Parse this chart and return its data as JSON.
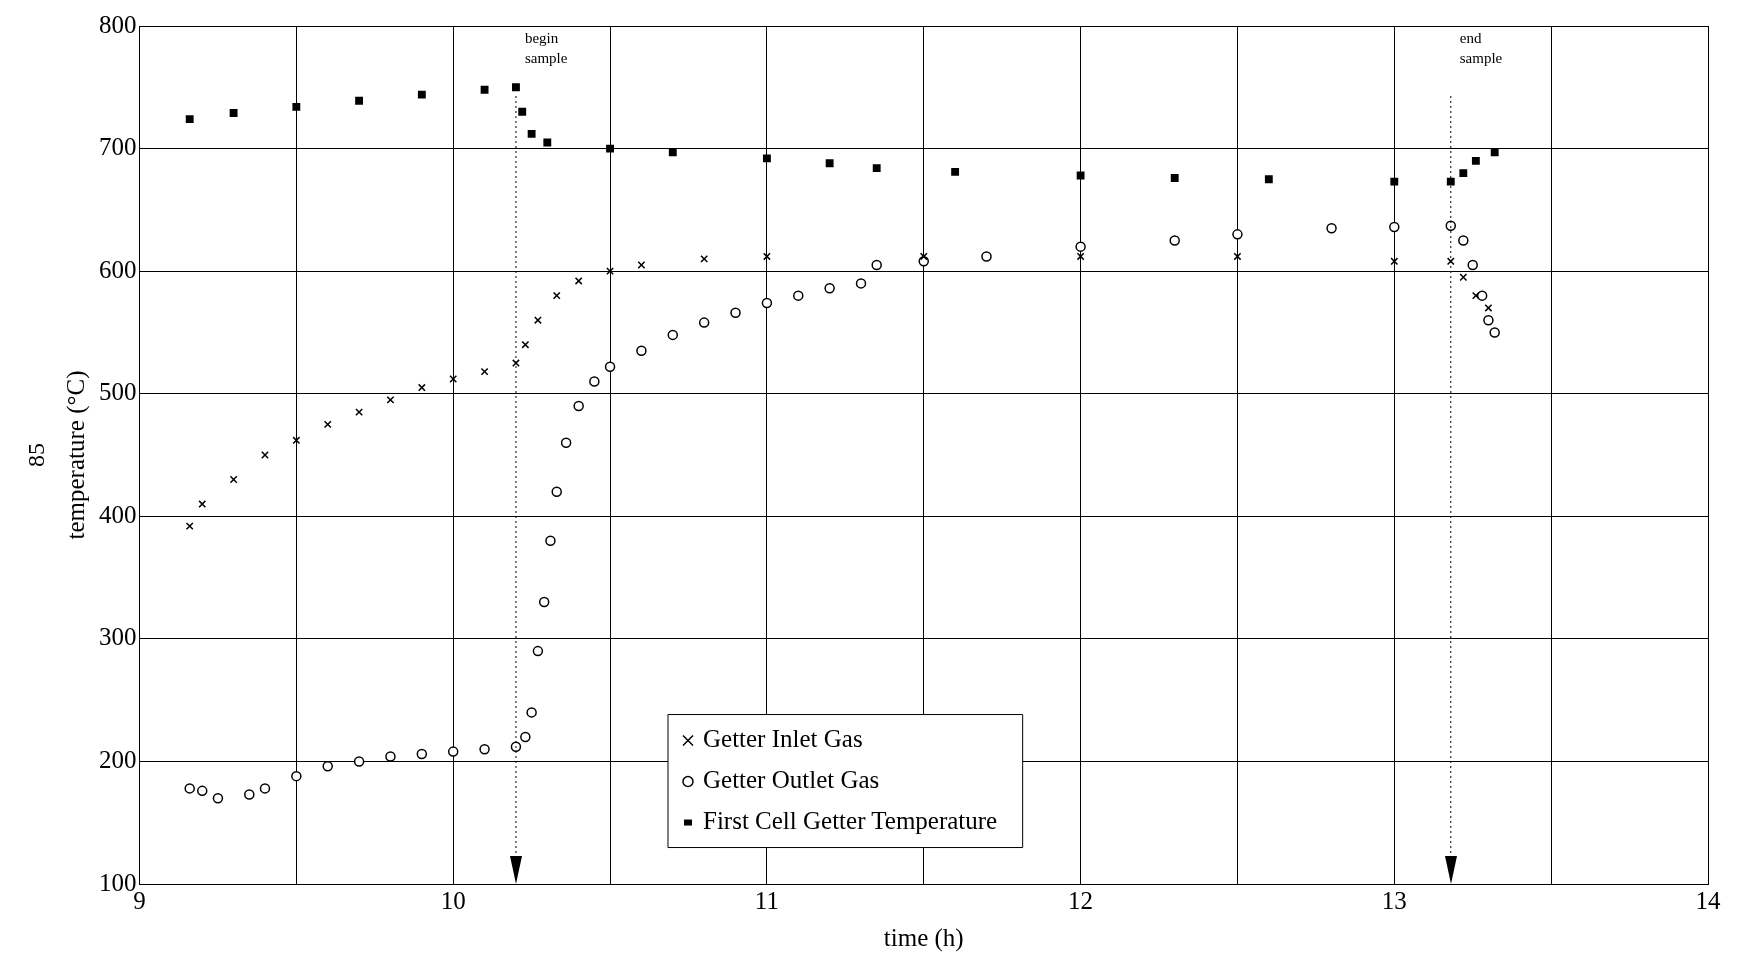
{
  "chart_data": {
    "type": "scatter",
    "xlabel": "time (h)",
    "ylabel": "temperature (°C)",
    "annotations": [
      "85"
    ],
    "xlim": [
      9,
      14
    ],
    "xticks": [
      9,
      {
        "value": 9.5,
        "label": null
      },
      10,
      {
        "value": 10.5,
        "label": null
      },
      11,
      {
        "value": 11.5,
        "label": null
      },
      12,
      {
        "value": 12.5,
        "label": null
      },
      13,
      {
        "value": 13.5,
        "label": null
      },
      14
    ],
    "ylim": [
      100,
      800
    ],
    "yticks": [
      100,
      200,
      300,
      400,
      500,
      600,
      700,
      800
    ],
    "grid": true,
    "legend": "bottom",
    "ref_lines": [
      {
        "axis": "x",
        "value": 10.2,
        "label": "begin sample",
        "line_style": "dotted",
        "color": "#000000"
      },
      {
        "axis": "x",
        "value": 13.18,
        "label": "end sample",
        "line_style": "dotted",
        "color": "#000000"
      }
    ],
    "series": [
      {
        "name": "Getter Inlet Gas",
        "color": "#000000",
        "marker": "cross",
        "x": [
          9.16,
          9.2,
          9.3,
          9.4,
          9.5,
          9.6,
          9.7,
          9.8,
          9.9,
          10.0,
          10.1,
          10.2,
          10.23,
          10.27,
          10.33,
          10.4,
          10.5,
          10.6,
          10.8,
          11.0,
          11.5,
          12.0,
          12.5,
          13.0,
          13.18,
          13.22,
          13.26,
          13.3
        ],
        "values": [
          392,
          410,
          430,
          450,
          462,
          475,
          485,
          495,
          505,
          512,
          518,
          525,
          540,
          560,
          580,
          592,
          600,
          605,
          610,
          612,
          612,
          612,
          612,
          608,
          608,
          595,
          580,
          570
        ]
      },
      {
        "name": "Getter Outlet Gas",
        "color": "#000000",
        "marker": "circle",
        "x": [
          9.16,
          9.2,
          9.25,
          9.35,
          9.4,
          9.5,
          9.6,
          9.7,
          9.8,
          9.9,
          10.0,
          10.1,
          10.2,
          10.23,
          10.25,
          10.27,
          10.29,
          10.31,
          10.33,
          10.36,
          10.4,
          10.45,
          10.5,
          10.6,
          10.7,
          10.8,
          10.9,
          11.0,
          11.1,
          11.2,
          11.3,
          11.35,
          11.5,
          11.7,
          12.0,
          12.3,
          12.5,
          12.8,
          13.0,
          13.18,
          13.22,
          13.25,
          13.28,
          13.3,
          13.32
        ],
        "values": [
          178,
          176,
          170,
          173,
          178,
          188,
          196,
          200,
          204,
          206,
          208,
          210,
          212,
          220,
          240,
          290,
          330,
          380,
          420,
          460,
          490,
          510,
          522,
          535,
          548,
          558,
          566,
          574,
          580,
          586,
          590,
          605,
          608,
          612,
          620,
          625,
          630,
          635,
          636,
          637,
          625,
          605,
          580,
          560,
          550
        ]
      },
      {
        "name": "First Cell Getter Temperature",
        "color": "#000000",
        "marker": "square",
        "x": [
          9.16,
          9.3,
          9.5,
          9.7,
          9.9,
          10.1,
          10.2,
          10.22,
          10.25,
          10.3,
          10.5,
          10.7,
          11.0,
          11.2,
          11.35,
          11.6,
          12.0,
          12.3,
          12.6,
          13.0,
          13.18,
          13.22,
          13.26,
          13.32
        ],
        "values": [
          724,
          729,
          734,
          739,
          744,
          748,
          750,
          730,
          712,
          705,
          700,
          697,
          692,
          688,
          684,
          681,
          678,
          676,
          675,
          673,
          673,
          680,
          690,
          697
        ]
      }
    ]
  }
}
